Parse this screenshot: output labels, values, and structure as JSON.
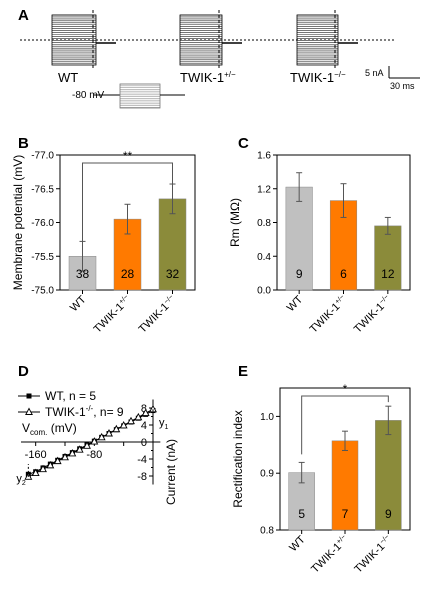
{
  "panels": {
    "A": {
      "label": "A",
      "traces": [
        "WT",
        "TWIK-1",
        "TWIK-1"
      ],
      "trace_superscripts": [
        "",
        "+/−",
        "−/−"
      ],
      "protocol_label": "-80 mV",
      "scale_current": "5 nA",
      "scale_time": "30 ms"
    },
    "B": {
      "label": "B"
    },
    "C": {
      "label": "C"
    },
    "D": {
      "label": "D"
    },
    "E": {
      "label": "E"
    }
  },
  "chart_data": [
    {
      "panel": "B",
      "type": "bar",
      "categories": [
        "WT",
        "TWIK-1",
        "TWIK-1"
      ],
      "category_superscripts": [
        "",
        "+/−",
        "−/−"
      ],
      "values": [
        -75.5,
        -76.05,
        -76.35
      ],
      "errors": [
        0.22,
        0.22,
        0.22
      ],
      "n_labels": [
        "38",
        "28",
        "32"
      ],
      "colors": [
        "#c0c0c0",
        "#ff7a00",
        "#8b8b3a"
      ],
      "ylabel": "Membrane potential (mV)",
      "ylim": [
        -75.0,
        -77.0
      ],
      "ytick_labels": [
        "-75.0",
        "-75.5",
        "-76.0",
        "-76.5",
        "-77.0"
      ],
      "significance": "**"
    },
    {
      "panel": "C",
      "type": "bar",
      "categories": [
        "WT",
        "TWIK-1",
        "TWIK-1"
      ],
      "category_superscripts": [
        "",
        "+/−",
        "−/−"
      ],
      "values": [
        1.22,
        1.06,
        0.76
      ],
      "errors": [
        0.17,
        0.2,
        0.1
      ],
      "n_labels": [
        "9",
        "6",
        "12"
      ],
      "colors": [
        "#c0c0c0",
        "#ff7a00",
        "#8b8b3a"
      ],
      "ylabel": "Rm (MΩ)",
      "ylim": [
        0.0,
        1.6
      ],
      "ytick_labels": [
        "0.0",
        "0.4",
        "0.8",
        "1.2",
        "1.6"
      ]
    },
    {
      "panel": "D",
      "type": "line",
      "x_label": "V",
      "x_label_sub": "com.",
      "x_label_unit": " (mV)",
      "ylabel": "Current (nA)",
      "x_tick_labels": [
        "-160",
        "-80"
      ],
      "y_tick_labels": [
        "8",
        "4",
        "0",
        "-4",
        "-8"
      ],
      "xlim": [
        -180,
        10
      ],
      "ylim": [
        -10,
        10
      ],
      "marker_y1": "y",
      "marker_y1_sub": "1",
      "marker_y2": "y",
      "marker_y2_sub": "2",
      "legend": "top-left",
      "series": [
        {
          "name_main": "WT, n = 5",
          "marker": "filled-square",
          "x": [
            -170,
            -160,
            -150,
            -140,
            -130,
            -120,
            -110,
            -100,
            -90,
            -80,
            -70,
            -60,
            -50,
            -40,
            -30,
            -20,
            -10,
            0
          ],
          "y": [
            -7.6,
            -7.0,
            -6.1,
            -5.2,
            -4.3,
            -3.4,
            -2.5,
            -1.6,
            -0.7,
            0.2,
            1.1,
            2.0,
            2.9,
            3.8,
            4.7,
            5.6,
            6.5,
            7.4
          ]
        },
        {
          "name_main": "TWIK-1",
          "name_sup": "-/-",
          "name_tail": ", n= 9",
          "marker": "open-triangle",
          "x": [
            -170,
            -160,
            -150,
            -140,
            -130,
            -120,
            -110,
            -100,
            -90,
            -80,
            -70,
            -60,
            -50,
            -40,
            -30,
            -20,
            -10,
            0
          ],
          "y": [
            -8.2,
            -7.3,
            -6.4,
            -5.5,
            -4.5,
            -3.6,
            -2.7,
            -1.8,
            -0.9,
            0.1,
            1.1,
            2.0,
            3.0,
            3.9,
            4.9,
            5.8,
            6.8,
            7.7
          ]
        }
      ]
    },
    {
      "panel": "E",
      "type": "bar",
      "categories": [
        "WT",
        "TWIK-1",
        "TWIK-1"
      ],
      "category_superscripts": [
        "",
        "+/−",
        "−/−"
      ],
      "values": [
        0.901,
        0.957,
        0.993
      ],
      "errors": [
        0.018,
        0.017,
        0.025
      ],
      "n_labels": [
        "5",
        "7",
        "9"
      ],
      "colors": [
        "#c0c0c0",
        "#ff7a00",
        "#8b8b3a"
      ],
      "ylabel": "Rectification index",
      "ylim": [
        0.8,
        1.05
      ],
      "ytick_values": [
        0.8,
        0.9,
        1.0
      ],
      "ytick_labels": [
        "0.8",
        "0.9",
        "1.0"
      ],
      "significance": "*"
    }
  ]
}
